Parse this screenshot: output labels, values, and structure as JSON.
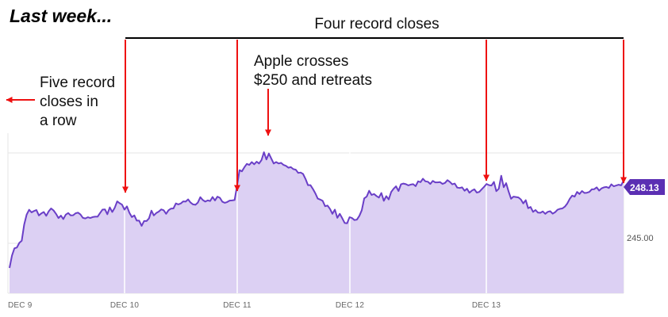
{
  "headline": "Last week...",
  "annotations": {
    "bracket": "Four record closes",
    "apple": [
      "Apple crosses",
      "$250 and retreats"
    ],
    "left": [
      "Five record",
      "closes in",
      "a row"
    ]
  },
  "colors": {
    "line": "#6a3fc7",
    "fill": "#dcd0f3",
    "arrow": "#ee1111",
    "badge": "#5b2fb3",
    "grid": "#e6e6e6"
  },
  "chart_data": {
    "type": "area",
    "title": "",
    "xlabel": "",
    "ylabel": "",
    "x_ticks": [
      "DEC 9",
      "DEC 10",
      "DEC 11",
      "DEC 12",
      "DEC 13"
    ],
    "y_tick_label": "245.00",
    "y_tick_value": 245.0,
    "last_value_label": "248.13",
    "ylim": [
      243.7,
      250.7
    ],
    "series": [
      {
        "values": [
          243.77,
          244.39,
          244.75,
          244.79,
          245.02,
          245.13,
          245.94,
          246.43,
          246.67,
          246.54,
          246.61,
          246.66,
          246.39,
          246.49,
          246.56,
          246.37,
          246.59,
          246.74,
          246.64,
          246.47,
          246.26,
          246.38,
          246.21,
          246.43,
          246.51,
          246.39,
          246.4,
          246.5,
          246.53,
          246.44,
          246.27,
          246.24,
          246.3,
          246.26,
          246.31,
          246.33,
          246.33,
          246.51,
          246.68,
          246.69,
          246.45,
          246.79,
          246.56,
          246.77,
          247.09,
          247.0,
          246.93,
          246.68,
          246.84,
          246.52,
          246.31,
          246.39,
          246.13,
          246.13,
          245.87,
          246.11,
          246.11,
          246.24,
          246.63,
          246.39,
          246.51,
          246.58,
          246.69,
          246.65,
          246.47,
          246.65,
          246.73,
          246.74,
          246.99,
          246.94,
          246.99,
          247.09,
          247.08,
          247.19,
          247.03,
          246.94,
          246.92,
          247.03,
          247.3,
          247.16,
          247.08,
          247.14,
          247.11,
          247.31,
          247.14,
          247.33,
          247.27,
          247.07,
          247.02,
          247.06,
          247.13,
          247.14,
          247.16,
          247.87,
          248.65,
          248.59,
          248.79,
          248.96,
          248.91,
          249.05,
          248.94,
          249.07,
          248.98,
          249.15,
          249.54,
          249.18,
          249.48,
          249.22,
          248.98,
          249.05,
          248.98,
          249.01,
          248.91,
          248.86,
          248.77,
          248.8,
          248.7,
          248.67,
          248.51,
          248.53,
          248.46,
          248.21,
          247.9,
          247.9,
          247.71,
          247.49,
          247.23,
          247.18,
          247.12,
          246.85,
          246.88,
          246.71,
          246.47,
          246.68,
          246.27,
          246.47,
          246.25,
          246.01,
          246.0,
          246.3,
          246.26,
          246.16,
          246.18,
          246.37,
          246.65,
          247.24,
          247.33,
          247.62,
          247.41,
          247.46,
          247.36,
          247.28,
          247.51,
          247.12,
          247.35,
          247.19,
          247.56,
          247.72,
          247.84,
          247.61,
          247.94,
          247.98,
          247.95,
          247.89,
          247.93,
          247.95,
          247.85,
          248.09,
          248.05,
          248.22,
          248.09,
          248.07,
          247.96,
          248.11,
          248.04,
          248.04,
          248.05,
          247.96,
          248.01,
          248.15,
          248.06,
          247.94,
          247.98,
          247.78,
          247.76,
          247.79,
          247.62,
          247.72,
          247.52,
          247.63,
          247.69,
          247.53,
          247.56,
          247.69,
          247.82,
          247.96,
          247.9,
          247.88,
          248.06,
          247.6,
          247.72,
          248.37,
          247.8,
          248.0,
          247.58,
          247.22,
          247.33,
          247.31,
          247.29,
          247.19,
          246.99,
          247.15,
          246.75,
          246.81,
          246.57,
          246.66,
          246.53,
          246.52,
          246.59,
          246.47,
          246.57,
          246.6,
          246.48,
          246.55,
          246.67,
          246.72,
          246.74,
          246.83,
          246.99,
          247.22,
          247.38,
          247.33,
          247.56,
          247.46,
          247.61,
          247.51,
          247.52,
          247.56,
          247.69,
          247.7,
          247.79,
          247.63,
          247.74,
          247.79,
          247.81,
          247.76,
          247.94,
          247.84,
          247.88,
          247.92,
          247.89,
          248.13
        ]
      }
    ]
  }
}
